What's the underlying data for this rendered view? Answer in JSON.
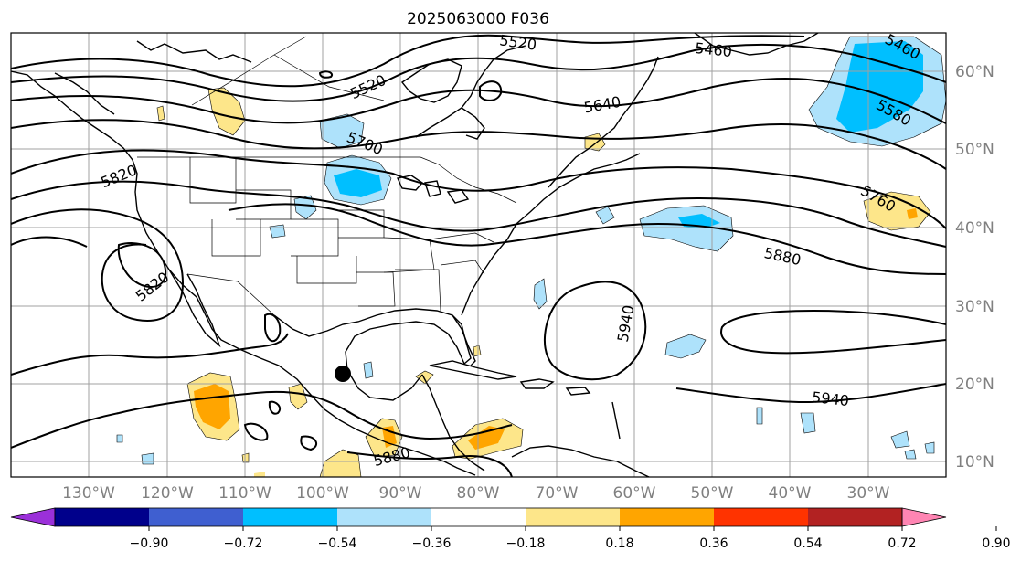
{
  "title": "2025063000 F036",
  "lat_labels": [
    "60°N",
    "50°N",
    "40°N",
    "30°N",
    "20°N",
    "10°N"
  ],
  "lon_labels": [
    "130°W",
    "120°W",
    "110°W",
    "100°W",
    "90°W",
    "80°W",
    "70°W",
    "60°W",
    "50°W",
    "40°W",
    "30°W"
  ],
  "contour_labels": [
    "5520",
    "5460",
    "5460",
    "5520",
    "5640",
    "5580",
    "5700",
    "5760",
    "5820",
    "5880",
    "5820",
    "5940",
    "5940",
    "5880"
  ],
  "colorbar": {
    "ticks": [
      "−0.90",
      "−0.72",
      "−0.54",
      "−0.36",
      "−0.18",
      "0.18",
      "0.36",
      "0.54",
      "0.72",
      "0.90"
    ],
    "colors": [
      "#9b30d9",
      "#00008b",
      "#3f5fd0",
      "#00bfff",
      "#aee2fb",
      "#ffffff",
      "#fde68a",
      "#ffa500",
      "#ff3300",
      "#b22222",
      "#ff85b3"
    ]
  },
  "colors": {
    "light_blue": "#aee2fb",
    "blue": "#00bfff",
    "yellow": "#fde68a",
    "orange": "#ffa500"
  },
  "marker": "black-dot"
}
